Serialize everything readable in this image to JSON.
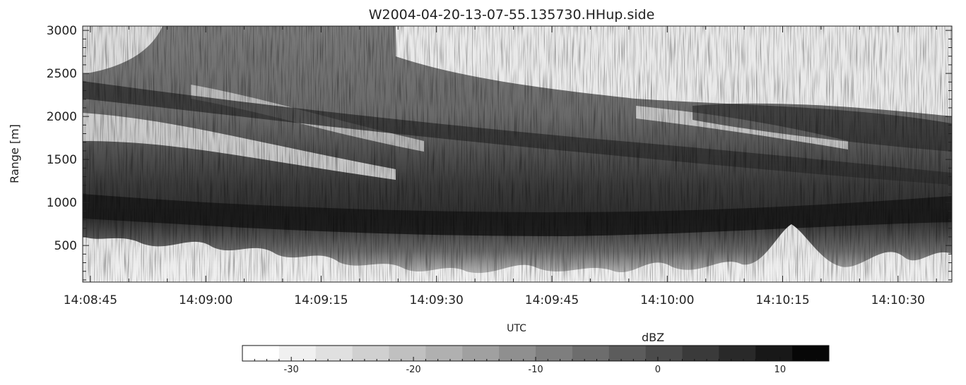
{
  "chart_data": {
    "type": "heatmap",
    "title": "W2004-04-20-13-07-55.135730.HHup.side",
    "xlabel": "UTC",
    "ylabel": "Range [m]",
    "x_ticks": [
      "14:08:45",
      "14:09:00",
      "14:09:15",
      "14:09:30",
      "14:09:45",
      "14:10:00",
      "14:10:15",
      "14:10:30"
    ],
    "x_range": [
      "14:08:44",
      "14:10:37"
    ],
    "y_ticks": [
      500,
      1000,
      1500,
      2000,
      2500,
      3000
    ],
    "ylim": [
      75,
      3050
    ],
    "colormap": "grayscale (white = low, black = high)",
    "colorbar": {
      "label": "dBZ",
      "ticks": [
        -30,
        -20,
        -10,
        0,
        10
      ],
      "range": [
        -34,
        14
      ],
      "levels": [
        "#ffffff",
        "#f0f0f0",
        "#e0e0e0",
        "#d0d0d0",
        "#c0c0c0",
        "#b0b0b0",
        "#a0a0a0",
        "#8f8f8f",
        "#7e7e7e",
        "#6d6d6d",
        "#5c5c5c",
        "#4b4b4b",
        "#3a3a3a",
        "#292929",
        "#181818",
        "#070707"
      ]
    },
    "features": [
      {
        "name": "dark reflectivity band",
        "range_m": [
          850,
          1150
        ]
      },
      {
        "name": "convective plumes",
        "range_m": [
          100,
          700
        ]
      },
      {
        "name": "sloping dark layers",
        "range_m": [
          1200,
          2400
        ]
      }
    ]
  }
}
